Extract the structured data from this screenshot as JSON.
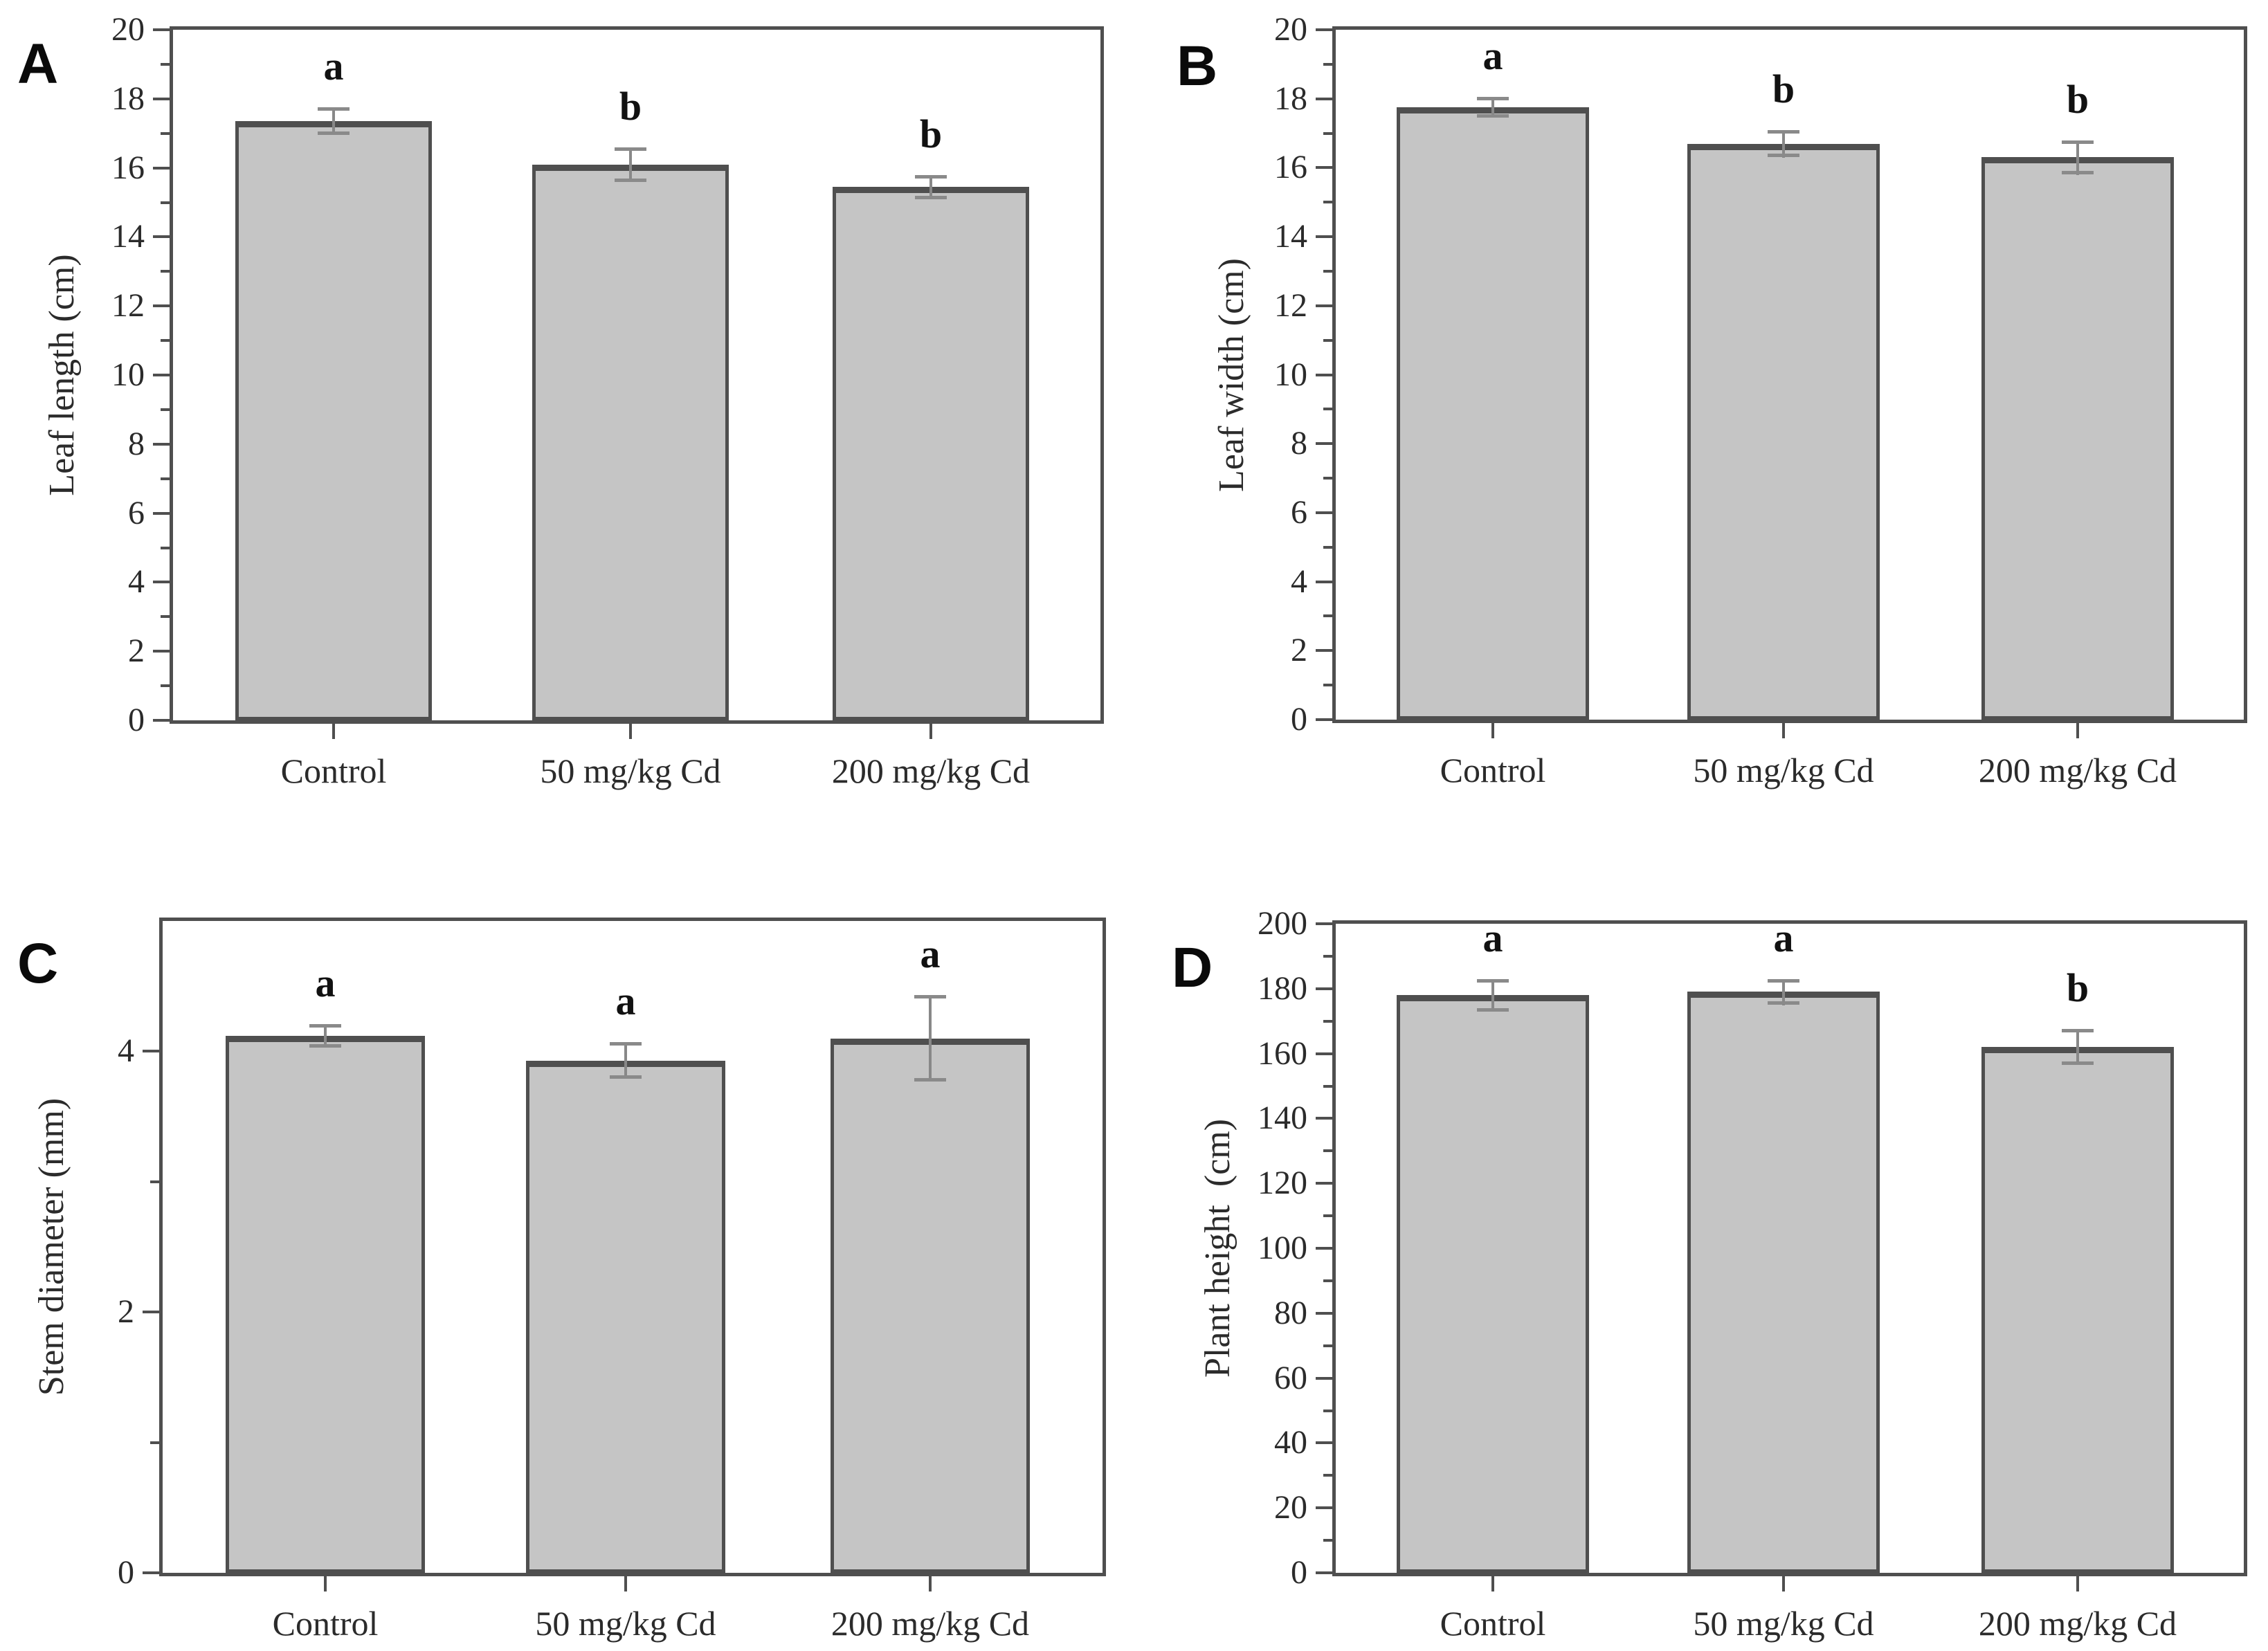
{
  "figure": {
    "background": "#ffffff",
    "bar_fill": "#c5c5c5",
    "bar_border": "#4f4f4f",
    "error_bar_color": "#888888",
    "axis_color": "#4f4f4f",
    "text_color": "#2b2b2b"
  },
  "chart_data": [
    {
      "type": "bar",
      "panel_label": "A",
      "title": "",
      "xlabel": "",
      "ylabel": "Leaf length (cm)",
      "categories": [
        "Control",
        "50 mg/kg Cd",
        "200 mg/kg Cd"
      ],
      "values": [
        17.35,
        16.1,
        15.45
      ],
      "errors": [
        0.4,
        0.5,
        0.35
      ],
      "sig_letters": [
        "a",
        "b",
        "b"
      ],
      "ylim": [
        0,
        20
      ],
      "ytick_step": 2,
      "minor_tick_step": 1,
      "grid": "off",
      "legend": "none"
    },
    {
      "type": "bar",
      "panel_label": "B",
      "title": "",
      "xlabel": "",
      "ylabel": "Leaf width (cm)",
      "categories": [
        "Control",
        "50 mg/kg Cd",
        "200 mg/kg Cd"
      ],
      "values": [
        17.75,
        16.7,
        16.3
      ],
      "errors": [
        0.3,
        0.4,
        0.5
      ],
      "sig_letters": [
        "a",
        "b",
        "b"
      ],
      "ylim": [
        0,
        20
      ],
      "ytick_step": 2,
      "minor_tick_step": 1,
      "grid": "off",
      "legend": "none"
    },
    {
      "type": "bar",
      "panel_label": "C",
      "title": "",
      "xlabel": "",
      "ylabel": "Stem diameter (mm)",
      "categories": [
        "Control",
        "50 mg/kg Cd",
        "200 mg/kg Cd"
      ],
      "values": [
        4.12,
        3.93,
        4.1
      ],
      "errors": [
        0.09,
        0.14,
        0.33
      ],
      "sig_letters": [
        "a",
        "a",
        "a"
      ],
      "ylim": [
        0,
        5
      ],
      "ytick_step": 2,
      "minor_tick_step": 1,
      "grid": "off",
      "legend": "none"
    },
    {
      "type": "bar",
      "panel_label": "D",
      "title": "",
      "xlabel": "",
      "ylabel": "Plant height  (cm)",
      "categories": [
        "Control",
        "50 mg/kg Cd",
        "200 mg/kg Cd"
      ],
      "values": [
        178,
        179,
        162
      ],
      "errors": [
        5,
        4,
        5.5
      ],
      "sig_letters": [
        "a",
        "a",
        "b"
      ],
      "ylim": [
        0,
        200
      ],
      "ytick_step": 20,
      "minor_tick_step": 10,
      "grid": "off",
      "legend": "none"
    }
  ]
}
